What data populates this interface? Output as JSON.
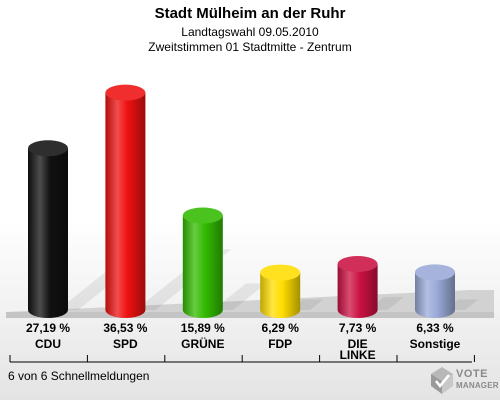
{
  "header": {
    "title": "Stadt Mülheim an der Ruhr",
    "subtitle1": "Landtagswahl 09.05.2010",
    "subtitle2": "Zweitstimmen 01 Stadtmitte - Zentrum"
  },
  "footer": {
    "status": "6 von 6 Schnellmeldungen"
  },
  "logo": {
    "line1": "VOTE",
    "line2": "MANAGER"
  },
  "chart_data": {
    "type": "bar",
    "title": "Stadt Mülheim an der Ruhr",
    "categories": [
      "CDU",
      "SPD",
      "GRÜNE",
      "FDP",
      "DIE LINKE",
      "Sonstige"
    ],
    "values": [
      27.19,
      36.53,
      15.89,
      6.29,
      7.73,
      6.33
    ],
    "value_labels": [
      "27,19 %",
      "36,53 %",
      "15,89 %",
      "6,29 %",
      "7,73 %",
      "6,33 %"
    ],
    "colors": [
      "#111111",
      "#ee1111",
      "#33bb00",
      "#ffdd00",
      "#cc1144",
      "#9aaad8"
    ],
    "ylim": [
      0,
      40
    ],
    "grid": false,
    "legend": "none"
  }
}
